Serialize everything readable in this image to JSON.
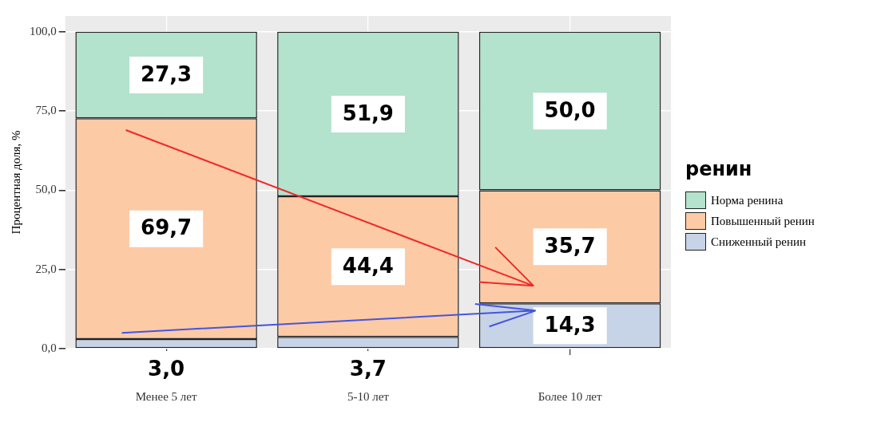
{
  "chart_data": {
    "type": "bar",
    "stacked": true,
    "ylabel": "Процентная доля, %",
    "legend_title": "ренин",
    "categories": [
      "Менее 5 лет",
      "5-10 лет",
      "Более 10 лет"
    ],
    "series": [
      {
        "name": "Сниженный ренин",
        "color": "#c7d3e6",
        "values": [
          3.0,
          3.7,
          14.3
        ]
      },
      {
        "name": "Повышенный ренин",
        "color": "#fdcaa6",
        "values": [
          69.7,
          44.4,
          35.7
        ]
      },
      {
        "name": "Норма ренина",
        "color": "#b3e2cd",
        "values": [
          27.3,
          51.9,
          50.0
        ]
      }
    ],
    "value_labels": [
      [
        "3,0",
        "3,7",
        "14,3"
      ],
      [
        "69,7",
        "44,4",
        "35,7"
      ],
      [
        "27,3",
        "51,9",
        "50,0"
      ]
    ],
    "ylim": [
      0,
      105
    ],
    "yticks": [
      {
        "value": 0,
        "label": "0,0"
      },
      {
        "value": 25,
        "label": "25,0"
      },
      {
        "value": 50,
        "label": "50,0"
      },
      {
        "value": 75,
        "label": "75,0"
      },
      {
        "value": 100,
        "label": "100,0"
      }
    ],
    "grid": true,
    "legend": "right"
  }
}
